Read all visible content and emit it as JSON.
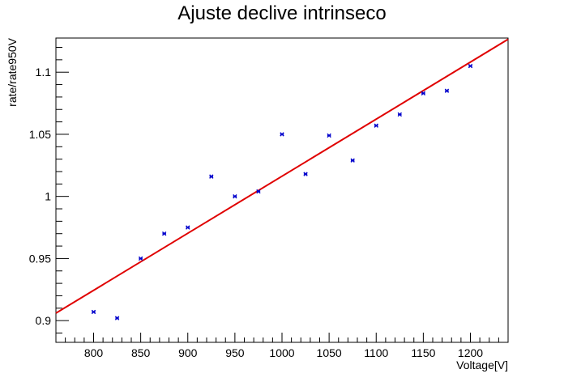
{
  "chart_data": {
    "type": "scatter",
    "title": "Ajuste declive intrinseco",
    "xlabel": "Voltage[V]",
    "ylabel": "rate/rate950V",
    "xlim": [
      760,
      1240
    ],
    "ylim": [
      0.8825,
      1.1275
    ],
    "x_major_ticks": [
      800,
      850,
      900,
      950,
      1000,
      1050,
      1100,
      1150,
      1200
    ],
    "x_tick_labels": [
      "800",
      "850",
      "900",
      "950",
      "1000",
      "1050",
      "1100",
      "1150",
      "1200"
    ],
    "y_major_ticks": [
      0.9,
      0.95,
      1.0,
      1.05,
      1.1
    ],
    "y_tick_labels": [
      "0.9",
      "0.95",
      "1",
      "1.05",
      "1.1"
    ],
    "grid": false,
    "series": [
      {
        "type": "scatter",
        "color": "#0000cc",
        "x": [
          800,
          825,
          850,
          875,
          900,
          925,
          950,
          975,
          1000,
          1025,
          1050,
          1075,
          1100,
          1125,
          1150,
          1175,
          1200
        ],
        "y": [
          0.907,
          0.902,
          0.95,
          0.97,
          0.975,
          1.016,
          1.0,
          1.004,
          1.05,
          1.018,
          1.049,
          1.029,
          1.057,
          1.066,
          1.083,
          1.085,
          1.105
        ]
      },
      {
        "type": "line",
        "color": "#e00000",
        "x": [
          760,
          1240
        ],
        "y": [
          0.906,
          1.1265
        ]
      }
    ]
  }
}
